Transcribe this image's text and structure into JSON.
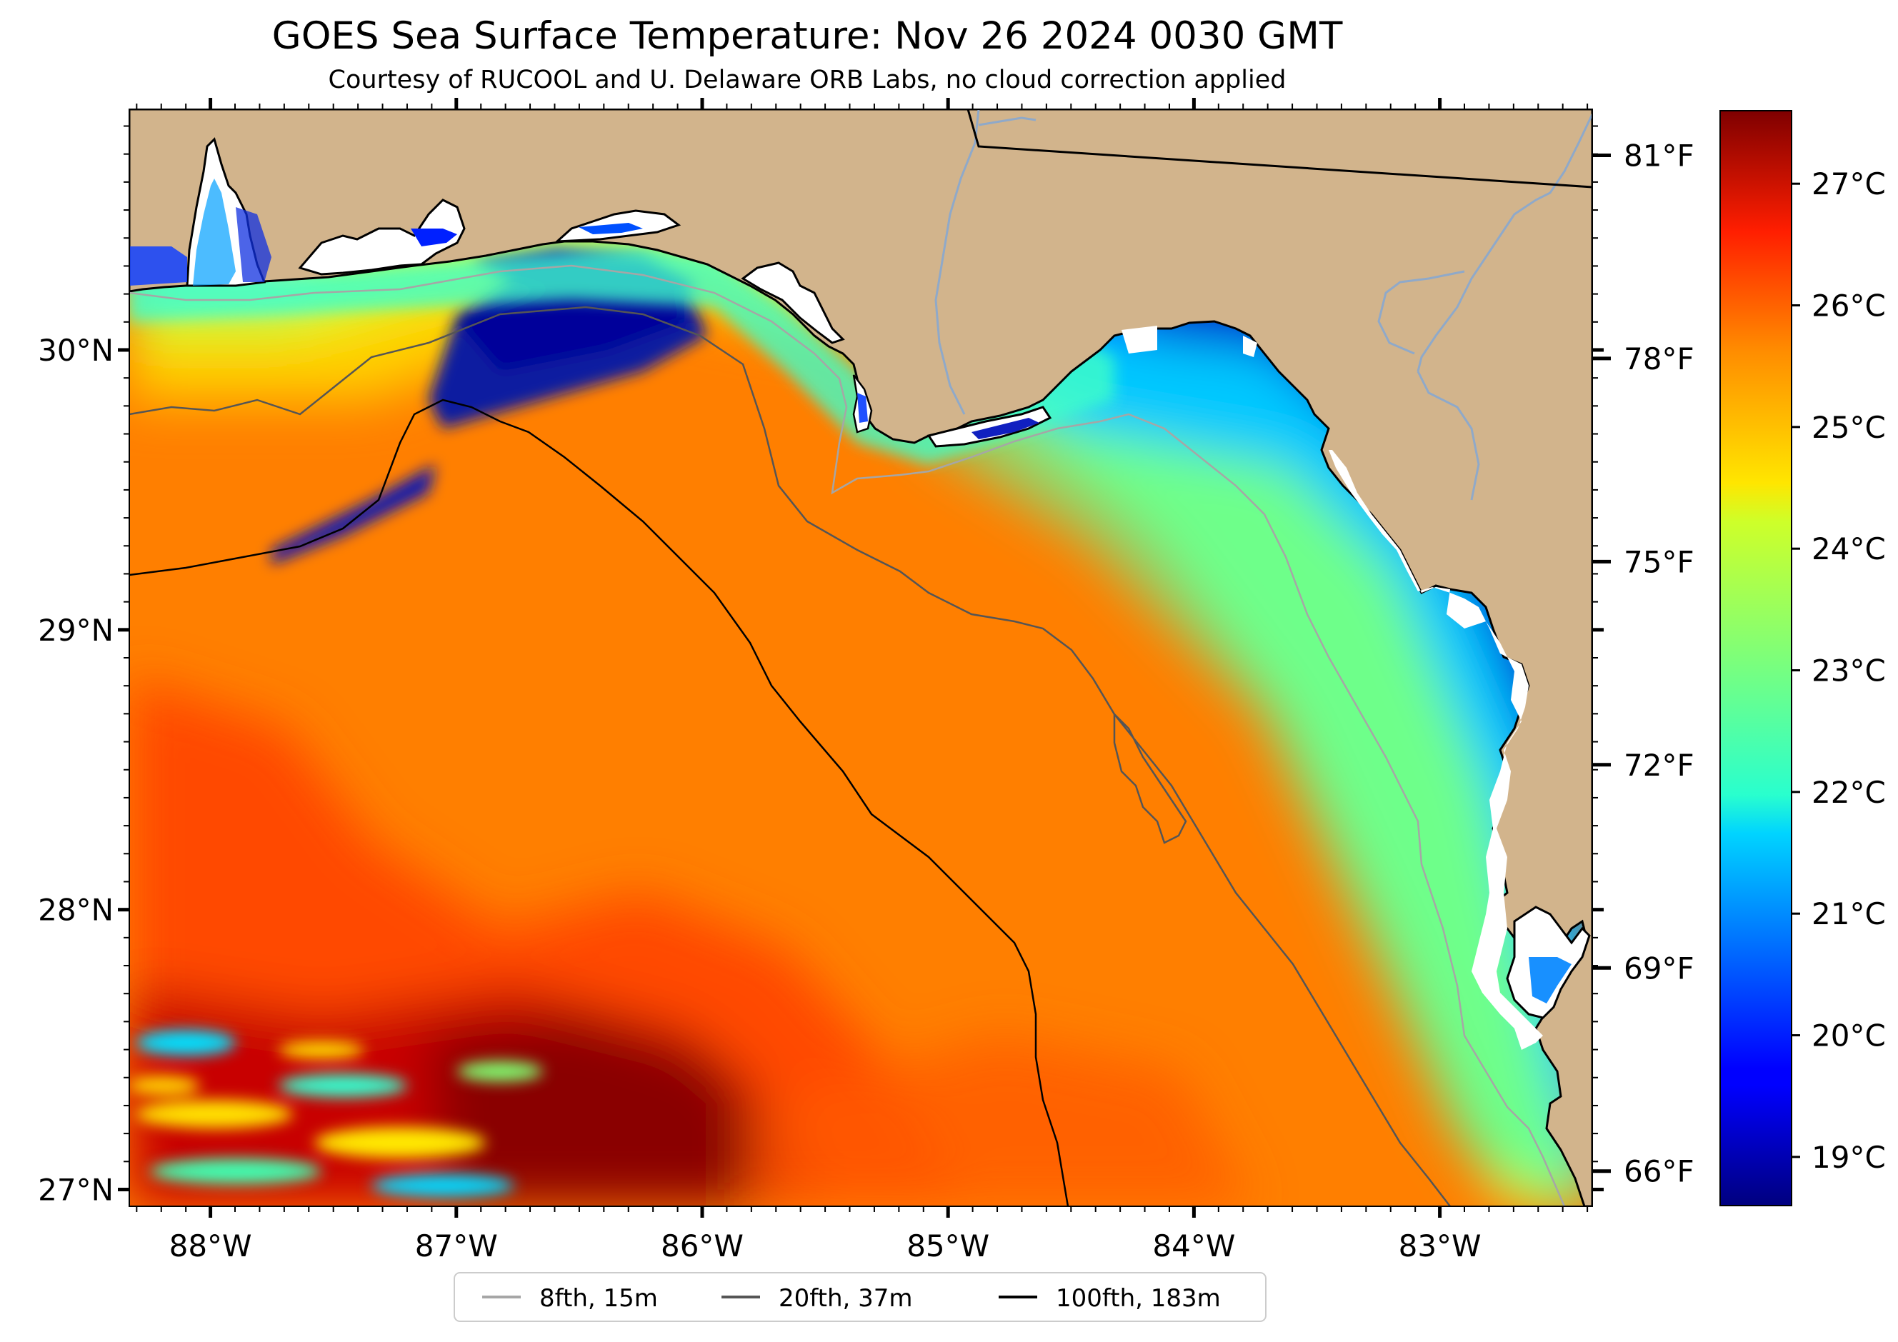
{
  "title": "GOES Sea Surface Temperature: Nov 26 2024 0030 GMT",
  "subtitle": "Courtesy of RUCOOL and U. Delaware ORB Labs, no cloud correction applied",
  "map": {
    "lon_range": [
      -88.33,
      -82.38
    ],
    "lat_range": [
      26.94,
      30.86
    ],
    "lon_ticks": [
      {
        "value": -88,
        "label": "88°W"
      },
      {
        "value": -87,
        "label": "87°W"
      },
      {
        "value": -86,
        "label": "86°W"
      },
      {
        "value": -85,
        "label": "85°W"
      },
      {
        "value": -84,
        "label": "84°W"
      },
      {
        "value": -83,
        "label": "83°W"
      }
    ],
    "lat_ticks": [
      {
        "value": 30,
        "label": "30°N"
      },
      {
        "value": 29,
        "label": "29°N"
      },
      {
        "value": 28,
        "label": "28°N"
      },
      {
        "value": 27,
        "label": "27°N"
      }
    ],
    "land_color": "#d2b48c",
    "coast_color": "#000000",
    "river_color": "#8fa9c9"
  },
  "fahrenheit_axis": [
    {
      "value": 81,
      "label": "81°F"
    },
    {
      "value": 78,
      "label": "78°F"
    },
    {
      "value": 75,
      "label": "75°F"
    },
    {
      "value": 72,
      "label": "72°F"
    },
    {
      "value": 69,
      "label": "69°F"
    },
    {
      "value": 66,
      "label": "66°F"
    }
  ],
  "colorbar": {
    "colormap": "jet",
    "range_c": [
      18.6,
      27.6
    ],
    "ticks": [
      {
        "value": 27,
        "label": "27°C"
      },
      {
        "value": 26,
        "label": "26°C"
      },
      {
        "value": 25,
        "label": "25°C"
      },
      {
        "value": 24,
        "label": "24°C"
      },
      {
        "value": 23,
        "label": "23°C"
      },
      {
        "value": 22,
        "label": "22°C"
      },
      {
        "value": 21,
        "label": "21°C"
      },
      {
        "value": 20,
        "label": "20°C"
      },
      {
        "value": 19,
        "label": "19°C"
      }
    ]
  },
  "legend": [
    {
      "label": "8fth, 15m",
      "color": "#a6a6a6"
    },
    {
      "label": "20fth, 37m",
      "color": "#555555"
    },
    {
      "label": "100fth, 183m",
      "color": "#000000"
    }
  ]
}
